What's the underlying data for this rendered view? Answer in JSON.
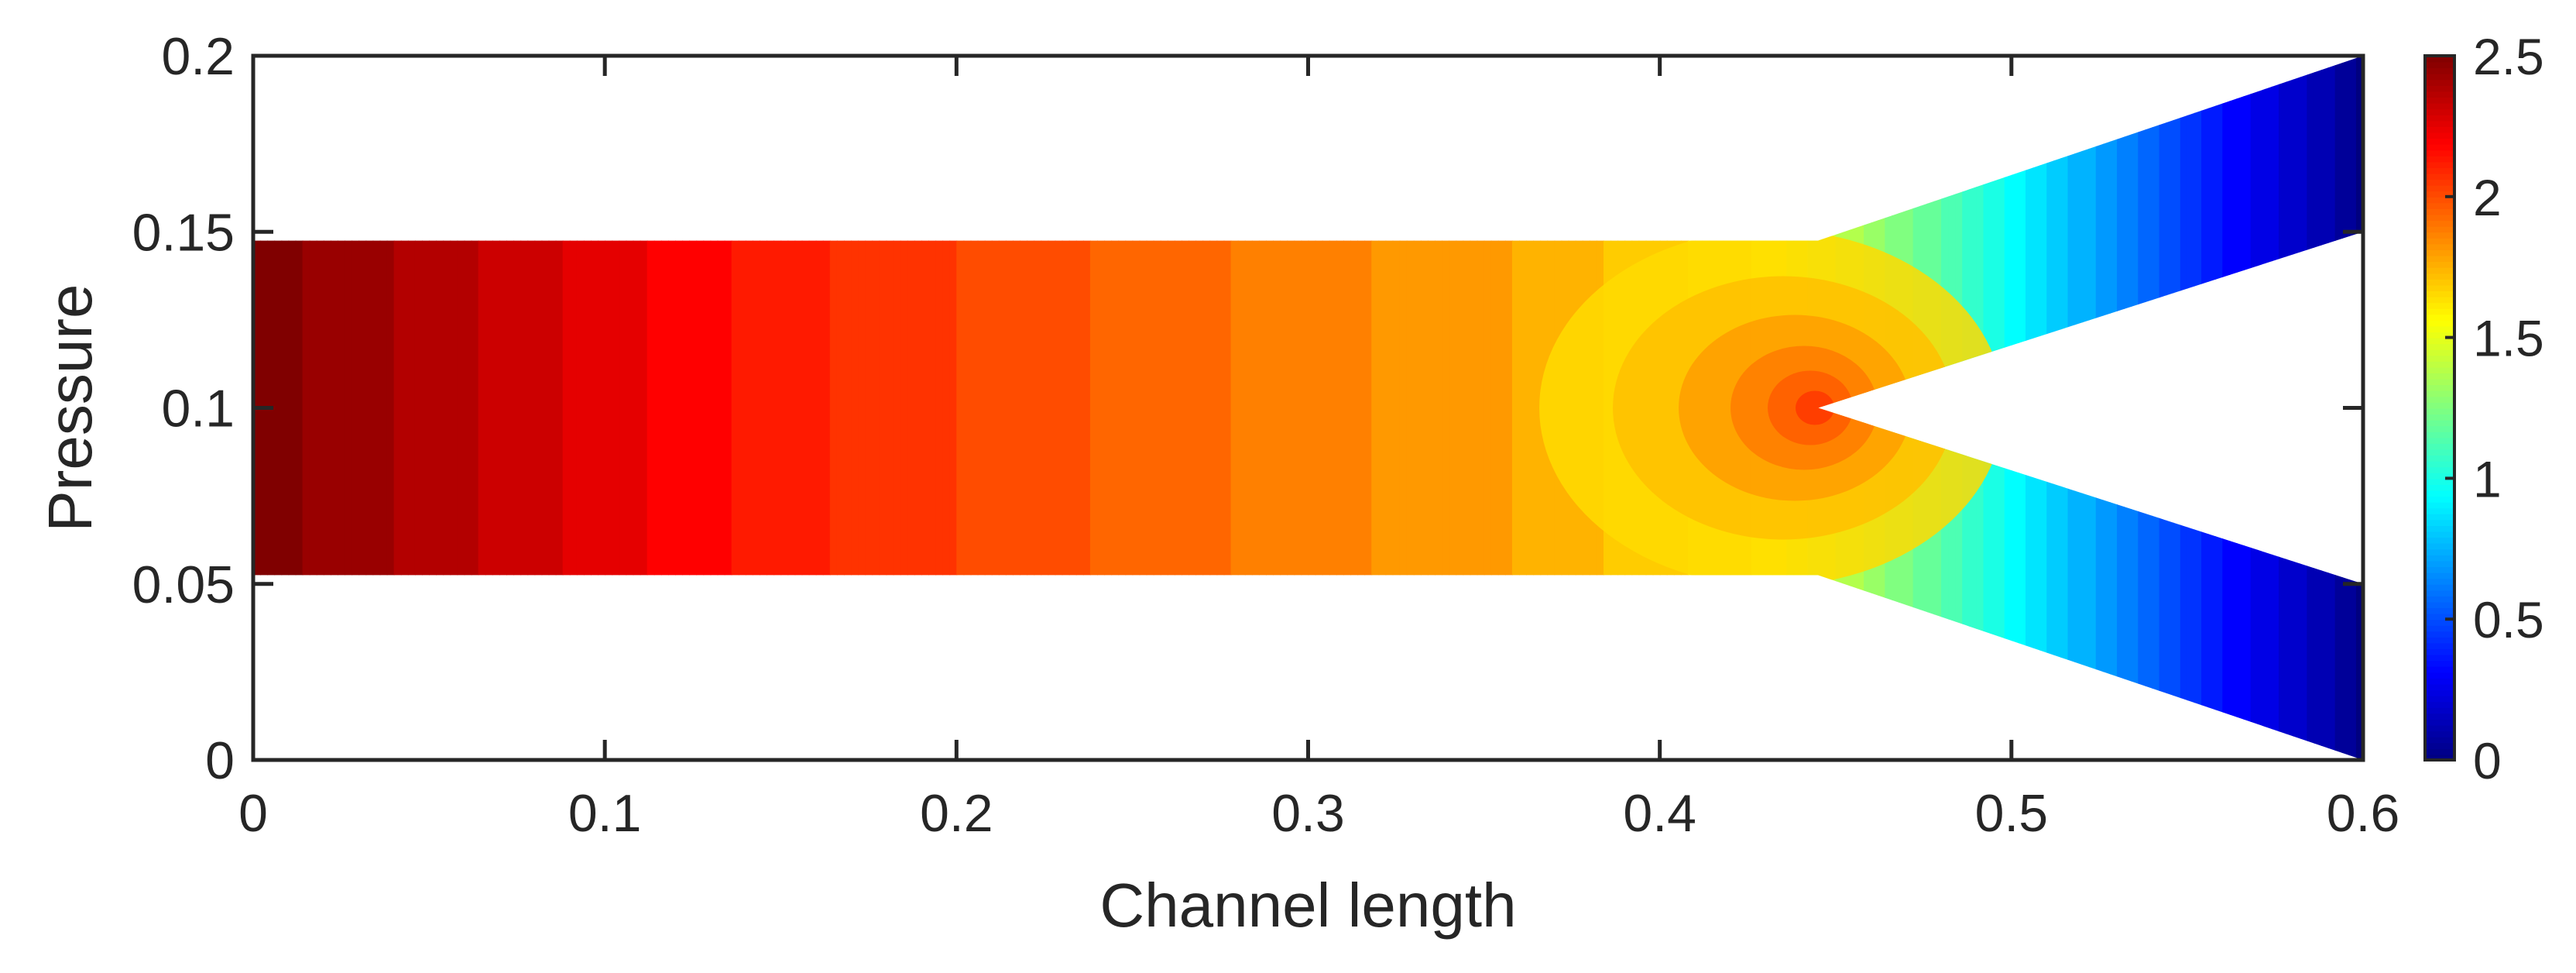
{
  "chart_data": {
    "type": "heatmap",
    "title": "",
    "xlabel": "Channel length",
    "ylabel": "Pressure",
    "xlim": [
      0,
      0.6
    ],
    "ylim": [
      0,
      0.2
    ],
    "x_ticks": [
      0,
      0.1,
      0.2,
      0.3,
      0.4,
      0.5,
      0.6
    ],
    "x_tick_labels": [
      "0",
      "0.1",
      "0.2",
      "0.3",
      "0.4",
      "0.5",
      "0.6"
    ],
    "y_ticks": [
      0,
      0.05,
      0.1,
      0.15,
      0.2
    ],
    "y_tick_labels": [
      "0",
      "0.05",
      "0.1",
      "0.15",
      "0.2"
    ],
    "grid": false,
    "colormap": "jet",
    "colorbar": {
      "range": [
        0,
        2.5
      ],
      "ticks": [
        0,
        0.5,
        1,
        1.5,
        2,
        2.5
      ],
      "tick_labels": [
        "0",
        "0.5",
        "1",
        "1.5",
        "2",
        "2.5"
      ],
      "placement": "right"
    },
    "geometry": {
      "main_channel": {
        "x": [
          0,
          0.445
        ],
        "y": [
          0.0525,
          0.1475
        ]
      },
      "junction_apex": [
        0.445,
        0.1
      ],
      "upper_branch": [
        [
          0.445,
          0.1475
        ],
        [
          0.6,
          0.2
        ],
        [
          0.6,
          0.15
        ],
        [
          0.445,
          0.1
        ]
      ],
      "lower_branch": [
        [
          0.445,
          0.1
        ],
        [
          0.6,
          0.05
        ],
        [
          0.6,
          0.0
        ],
        [
          0.445,
          0.0525
        ]
      ]
    },
    "field_profile": {
      "x": [
        0,
        0.05,
        0.1,
        0.15,
        0.2,
        0.25,
        0.3,
        0.35,
        0.4,
        0.43,
        0.445,
        0.48,
        0.52,
        0.56,
        0.6
      ],
      "value": [
        2.5,
        2.38,
        2.25,
        2.12,
        2.03,
        1.95,
        1.87,
        1.8,
        1.68,
        1.58,
        1.45,
        1.15,
        0.75,
        0.35,
        0.02
      ]
    }
  }
}
